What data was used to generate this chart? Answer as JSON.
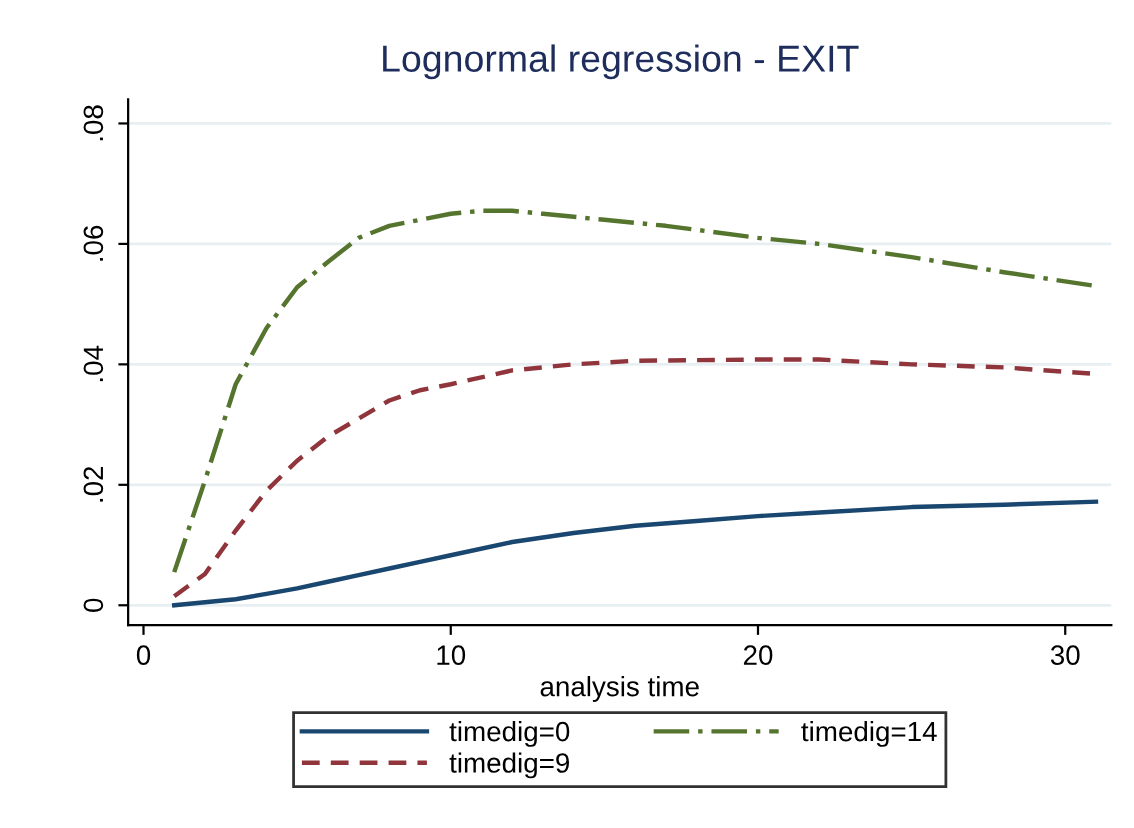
{
  "chart_data": {
    "type": "line",
    "title": "Lognormal regression - EXIT",
    "xlabel": "analysis time",
    "xlim": [
      -0.5,
      31.5
    ],
    "ylim": [
      -0.0033,
      0.084
    ],
    "xticks": [
      0,
      10,
      20,
      30
    ],
    "yticks": [
      {
        "value": 0,
        "label": "0"
      },
      {
        "value": 0.02,
        "label": ".02"
      },
      {
        "value": 0.04,
        "label": ".04"
      },
      {
        "value": 0.06,
        "label": ".06"
      },
      {
        "value": 0.08,
        "label": ".08"
      }
    ],
    "grid": "y",
    "legend": "bottom",
    "marker": "none",
    "series": [
      {
        "name": "timedig=0",
        "color": "#1a476f",
        "line_style": "solid",
        "x": [
          1,
          2,
          3,
          4,
          5,
          6,
          7,
          8,
          9,
          10,
          12,
          14,
          16,
          18,
          20,
          22,
          25,
          28,
          31
        ],
        "values": [
          0.0,
          0.0005,
          0.001,
          0.0019,
          0.0028,
          0.0039,
          0.005,
          0.0061,
          0.0072,
          0.0083,
          0.0105,
          0.012,
          0.0132,
          0.014,
          0.0148,
          0.0154,
          0.0163,
          0.0167,
          0.0172
        ]
      },
      {
        "name": "timedig=9",
        "color": "#90353b",
        "line_style": "dashed",
        "x": [
          1,
          2,
          3,
          4,
          5,
          6,
          7,
          8,
          9,
          10,
          12,
          14,
          16,
          20,
          22,
          25,
          28,
          31
        ],
        "values": [
          0.0015,
          0.0052,
          0.0124,
          0.019,
          0.024,
          0.028,
          0.031,
          0.034,
          0.0357,
          0.0367,
          0.039,
          0.04,
          0.0406,
          0.0408,
          0.0408,
          0.04,
          0.0395,
          0.0384
        ]
      },
      {
        "name": "timedig=14",
        "color": "#55752f",
        "line_style": "dashdot",
        "x": [
          1,
          2,
          3,
          4,
          5,
          6,
          7,
          8,
          9,
          10,
          11,
          12,
          13,
          15,
          17,
          20,
          22,
          25,
          28,
          31
        ],
        "values": [
          0.0055,
          0.0207,
          0.0367,
          0.046,
          0.0528,
          0.057,
          0.061,
          0.063,
          0.064,
          0.065,
          0.0655,
          0.0655,
          0.065,
          0.064,
          0.063,
          0.061,
          0.06,
          0.0578,
          0.0553,
          0.053
        ]
      }
    ]
  }
}
